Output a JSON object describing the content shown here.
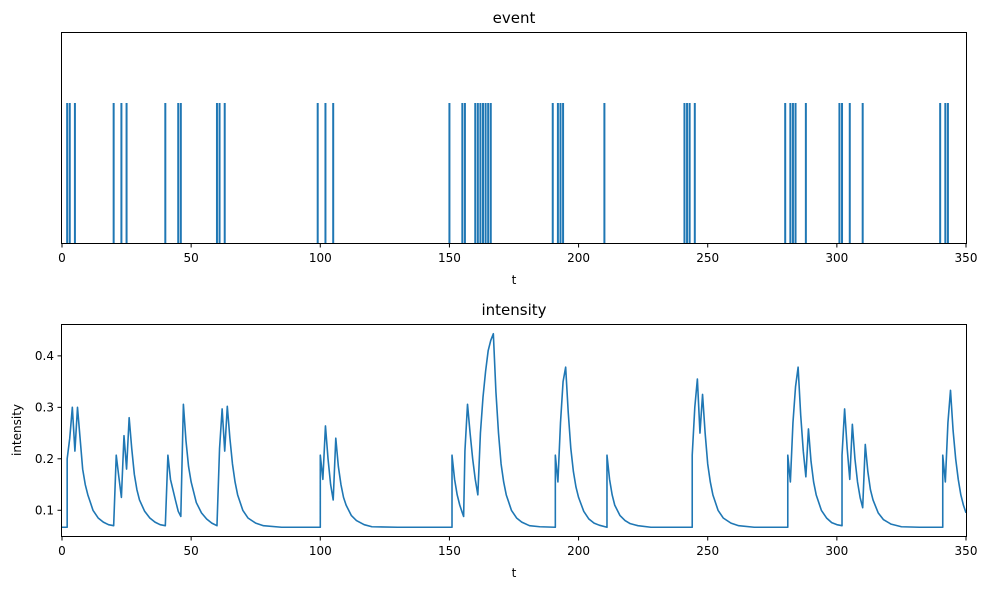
{
  "chart_data": [
    {
      "type": "eventplot",
      "title": "event",
      "xlabel": "t",
      "ylabel": "",
      "xlim": [
        0,
        350
      ],
      "xticks": [
        0,
        50,
        100,
        150,
        200,
        250,
        300,
        350
      ],
      "color": "#1f77b4",
      "events": [
        2,
        3,
        5,
        20,
        23,
        25,
        40,
        45,
        46,
        60,
        61,
        63,
        99,
        102,
        105,
        150,
        155,
        156,
        160,
        161,
        162,
        163,
        164,
        165,
        166,
        190,
        192,
        193,
        194,
        210,
        241,
        242,
        243,
        245,
        280,
        282,
        283,
        284,
        288,
        301,
        302,
        305,
        310,
        340,
        342,
        343
      ]
    },
    {
      "type": "line",
      "title": "intensity",
      "xlabel": "t",
      "ylabel": "intensity",
      "xlim": [
        0,
        350
      ],
      "ylim": [
        0.05,
        0.46
      ],
      "xticks": [
        0,
        50,
        100,
        150,
        200,
        250,
        300,
        350
      ],
      "yticks": [
        0.1,
        0.2,
        0.3,
        0.4
      ],
      "color": "#1f77b4",
      "baseline": 0.067,
      "x_end": 350,
      "points": [
        [
          0,
          0.067
        ],
        [
          2,
          0.067
        ],
        [
          2,
          0.2
        ],
        [
          3,
          0.24
        ],
        [
          4,
          0.3
        ],
        [
          5,
          0.215
        ],
        [
          6,
          0.3
        ],
        [
          7,
          0.24
        ],
        [
          8,
          0.18
        ],
        [
          9,
          0.15
        ],
        [
          10,
          0.13
        ],
        [
          11,
          0.115
        ],
        [
          12,
          0.1
        ],
        [
          14,
          0.085
        ],
        [
          16,
          0.077
        ],
        [
          18,
          0.072
        ],
        [
          20,
          0.07
        ],
        [
          21,
          0.207
        ],
        [
          22,
          0.165
        ],
        [
          23,
          0.125
        ],
        [
          24,
          0.245
        ],
        [
          25,
          0.18
        ],
        [
          26,
          0.28
        ],
        [
          27,
          0.22
        ],
        [
          28,
          0.17
        ],
        [
          29,
          0.14
        ],
        [
          30,
          0.12
        ],
        [
          32,
          0.098
        ],
        [
          34,
          0.085
        ],
        [
          36,
          0.077
        ],
        [
          38,
          0.072
        ],
        [
          40,
          0.07
        ],
        [
          41,
          0.207
        ],
        [
          42,
          0.16
        ],
        [
          44,
          0.118
        ],
        [
          45,
          0.098
        ],
        [
          46,
          0.088
        ],
        [
          47,
          0.306
        ],
        [
          48,
          0.235
        ],
        [
          49,
          0.185
        ],
        [
          50,
          0.155
        ],
        [
          52,
          0.115
        ],
        [
          54,
          0.095
        ],
        [
          56,
          0.083
        ],
        [
          58,
          0.075
        ],
        [
          60,
          0.07
        ],
        [
          61,
          0.22
        ],
        [
          62,
          0.297
        ],
        [
          63,
          0.215
        ],
        [
          64,
          0.302
        ],
        [
          65,
          0.24
        ],
        [
          66,
          0.19
        ],
        [
          67,
          0.155
        ],
        [
          68,
          0.13
        ],
        [
          70,
          0.1
        ],
        [
          72,
          0.085
        ],
        [
          75,
          0.075
        ],
        [
          78,
          0.07
        ],
        [
          85,
          0.067
        ],
        [
          100,
          0.067
        ],
        [
          100,
          0.207
        ],
        [
          101,
          0.16
        ],
        [
          102,
          0.264
        ],
        [
          103,
          0.2
        ],
        [
          104,
          0.15
        ],
        [
          105,
          0.12
        ],
        [
          106,
          0.24
        ],
        [
          107,
          0.185
        ],
        [
          108,
          0.15
        ],
        [
          109,
          0.125
        ],
        [
          110,
          0.11
        ],
        [
          112,
          0.09
        ],
        [
          114,
          0.08
        ],
        [
          117,
          0.072
        ],
        [
          120,
          0.068
        ],
        [
          130,
          0.067
        ],
        [
          151,
          0.067
        ],
        [
          151,
          0.207
        ],
        [
          152,
          0.16
        ],
        [
          153,
          0.13
        ],
        [
          154,
          0.11
        ],
        [
          155,
          0.095
        ],
        [
          155.5,
          0.088
        ],
        [
          156,
          0.215
        ],
        [
          157,
          0.306
        ],
        [
          158,
          0.25
        ],
        [
          159,
          0.2
        ],
        [
          160,
          0.16
        ],
        [
          161,
          0.13
        ],
        [
          162,
          0.25
        ],
        [
          163,
          0.32
        ],
        [
          164,
          0.37
        ],
        [
          165,
          0.41
        ],
        [
          166,
          0.43
        ],
        [
          167,
          0.443
        ],
        [
          168,
          0.33
        ],
        [
          169,
          0.25
        ],
        [
          170,
          0.19
        ],
        [
          171,
          0.155
        ],
        [
          172,
          0.13
        ],
        [
          174,
          0.1
        ],
        [
          176,
          0.085
        ],
        [
          178,
          0.077
        ],
        [
          181,
          0.07
        ],
        [
          185,
          0.068
        ],
        [
          191,
          0.067
        ],
        [
          191,
          0.207
        ],
        [
          192,
          0.155
        ],
        [
          193,
          0.27
        ],
        [
          194,
          0.35
        ],
        [
          195,
          0.378
        ],
        [
          196,
          0.29
        ],
        [
          197,
          0.22
        ],
        [
          198,
          0.175
        ],
        [
          199,
          0.145
        ],
        [
          200,
          0.125
        ],
        [
          202,
          0.098
        ],
        [
          204,
          0.083
        ],
        [
          206,
          0.075
        ],
        [
          208,
          0.071
        ],
        [
          211,
          0.067
        ],
        [
          211,
          0.207
        ],
        [
          212,
          0.16
        ],
        [
          213,
          0.13
        ],
        [
          214,
          0.11
        ],
        [
          216,
          0.09
        ],
        [
          218,
          0.08
        ],
        [
          220,
          0.074
        ],
        [
          223,
          0.07
        ],
        [
          228,
          0.067
        ],
        [
          244,
          0.067
        ],
        [
          244,
          0.207
        ],
        [
          245,
          0.3
        ],
        [
          246,
          0.355
        ],
        [
          247,
          0.25
        ],
        [
          248,
          0.325
        ],
        [
          249,
          0.25
        ],
        [
          250,
          0.19
        ],
        [
          251,
          0.155
        ],
        [
          252,
          0.13
        ],
        [
          254,
          0.1
        ],
        [
          256,
          0.085
        ],
        [
          259,
          0.075
        ],
        [
          262,
          0.07
        ],
        [
          268,
          0.067
        ],
        [
          281,
          0.067
        ],
        [
          281,
          0.207
        ],
        [
          282,
          0.155
        ],
        [
          283,
          0.27
        ],
        [
          284,
          0.34
        ],
        [
          285,
          0.378
        ],
        [
          286,
          0.285
        ],
        [
          287,
          0.215
        ],
        [
          288,
          0.165
        ],
        [
          289,
          0.258
        ],
        [
          290,
          0.195
        ],
        [
          291,
          0.155
        ],
        [
          292,
          0.13
        ],
        [
          294,
          0.1
        ],
        [
          296,
          0.085
        ],
        [
          298,
          0.076
        ],
        [
          300,
          0.072
        ],
        [
          302,
          0.07
        ],
        [
          302,
          0.207
        ],
        [
          303,
          0.297
        ],
        [
          304,
          0.22
        ],
        [
          305,
          0.16
        ],
        [
          306,
          0.267
        ],
        [
          307,
          0.2
        ],
        [
          308,
          0.155
        ],
        [
          309,
          0.125
        ],
        [
          310,
          0.105
        ],
        [
          311,
          0.228
        ],
        [
          312,
          0.175
        ],
        [
          313,
          0.14
        ],
        [
          314,
          0.12
        ],
        [
          316,
          0.095
        ],
        [
          318,
          0.082
        ],
        [
          321,
          0.073
        ],
        [
          325,
          0.068
        ],
        [
          332,
          0.067
        ],
        [
          341,
          0.067
        ],
        [
          341,
          0.207
        ],
        [
          342,
          0.155
        ],
        [
          343,
          0.27
        ],
        [
          344,
          0.333
        ],
        [
          345,
          0.255
        ],
        [
          346,
          0.2
        ],
        [
          347,
          0.16
        ],
        [
          348,
          0.13
        ],
        [
          349,
          0.11
        ],
        [
          350,
          0.095
        ]
      ]
    }
  ]
}
